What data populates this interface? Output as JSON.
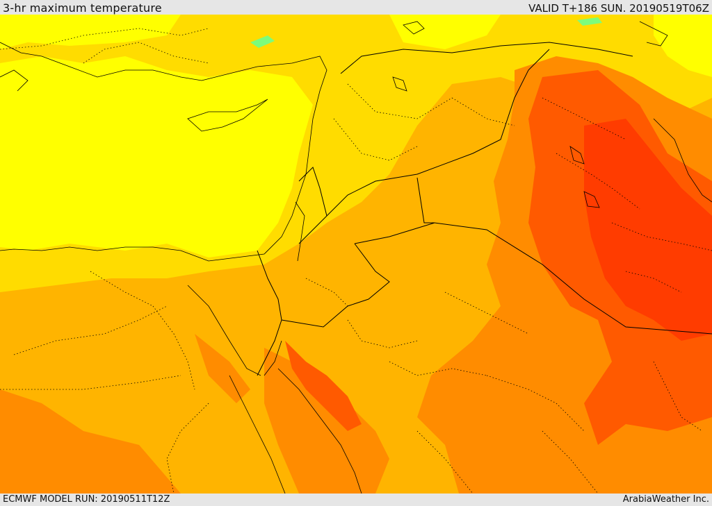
{
  "header": {
    "title": "3-hr maximum temperature",
    "valid_time": "VALID T+186 SUN. 20190519T06Z"
  },
  "footer": {
    "model_run": "ECMWF MODEL RUN: 20190511T12Z",
    "credit": "ArabiaWeather Inc."
  },
  "colors": {
    "light_yellow": "#ffff00",
    "yellow": "#ffdc00",
    "orange_yellow": "#ffb400",
    "orange": "#ff8c00",
    "dark_orange": "#ff5a00",
    "red_orange": "#ff3c00",
    "green": "#7cfc7c",
    "border_color": "#000000"
  }
}
